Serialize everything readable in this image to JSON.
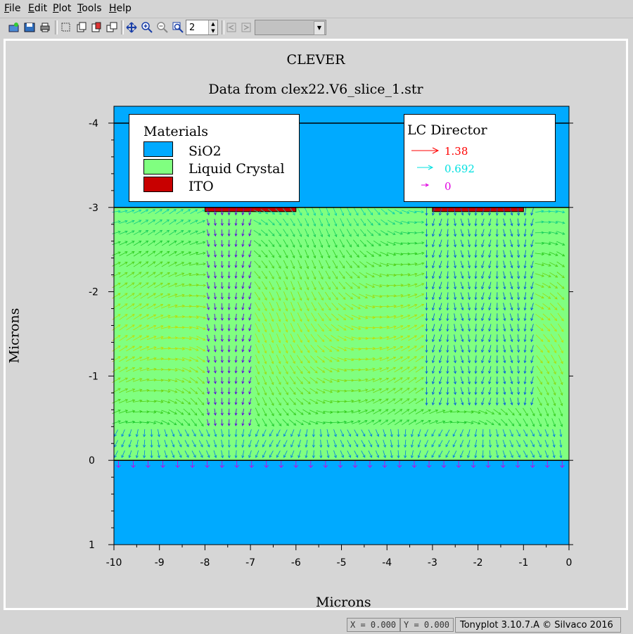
{
  "menu": {
    "items": [
      {
        "label": "File",
        "underline": "F",
        "rest": "ile"
      },
      {
        "label": "Edit",
        "underline": "E",
        "rest": "dit"
      },
      {
        "label": "Plot",
        "underline": "P",
        "rest": "lot"
      },
      {
        "label": "Tools",
        "underline": "T",
        "rest": "ools"
      },
      {
        "label": "Help",
        "underline": "H",
        "rest": "elp"
      }
    ]
  },
  "toolbar": {
    "zoom_factor": "2",
    "icons": [
      "open-icon",
      "save-icon",
      "print-icon",
      "select-icon",
      "copy-icon",
      "paste-icon",
      "duplicate-icon",
      "pan-icon",
      "zoom-in-icon",
      "zoom-out-icon",
      "zoom-box-icon",
      "undo-zoom-icon",
      "redo-zoom-icon"
    ],
    "combo_value": ""
  },
  "plot": {
    "title": "CLEVER",
    "subtitle": "Data from clex22.V6_slice_1.str",
    "xlabel": "Microns",
    "ylabel": "Microns"
  },
  "chart_data": {
    "type": "vector-structure",
    "title": "CLEVER",
    "subtitle": "Data from clex22.V6_slice_1.str",
    "xlabel": "Microns",
    "ylabel": "Microns",
    "xlim": [
      -10,
      0
    ],
    "ylim": [
      -4.2,
      1
    ],
    "x_ticks": [
      "-10",
      "-9",
      "-8",
      "-7",
      "-6",
      "-5",
      "-4",
      "-3",
      "-2",
      "-1",
      "0"
    ],
    "y_ticks": [
      "-4",
      "-3",
      "-2",
      "-1",
      "0",
      "1"
    ],
    "regions": [
      {
        "material": "SiO2",
        "color": "#00aaff",
        "y_range": [
          -4.2,
          -3.0
        ]
      },
      {
        "material": "Liquid Crystal",
        "color": "#80ff80",
        "y_range": [
          -3.0,
          0.0
        ]
      },
      {
        "material": "SiO2",
        "color": "#00aaff",
        "y_range": [
          0.0,
          1.0
        ]
      },
      {
        "material": "ITO",
        "color": "#c80000",
        "y_range": [
          -3.0,
          -2.95
        ],
        "x_range": [
          -8.0,
          -6.0
        ]
      },
      {
        "material": "ITO",
        "color": "#c80000",
        "y_range": [
          -3.0,
          -2.95
        ],
        "x_range": [
          -3.0,
          -1.0
        ]
      }
    ],
    "materials_legend": {
      "title": "Materials",
      "entries": [
        {
          "name": "SiO2",
          "color": "#00aaff"
        },
        {
          "name": "Liquid Crystal",
          "color": "#80ff80"
        },
        {
          "name": "ITO",
          "color": "#c80000"
        }
      ]
    },
    "vector_legend": {
      "title": "LC Director",
      "entries": [
        {
          "value": "1.38",
          "color": "#ff0000"
        },
        {
          "value": "0.692",
          "color": "#00e0e0"
        },
        {
          "value": "0",
          "color": "#e000e0"
        }
      ]
    }
  },
  "status": {
    "x_readout": "X = 0.000",
    "y_readout": "Y = 0.000",
    "brand": "Tonyplot 3.10.7.A © Silvaco 2016"
  }
}
